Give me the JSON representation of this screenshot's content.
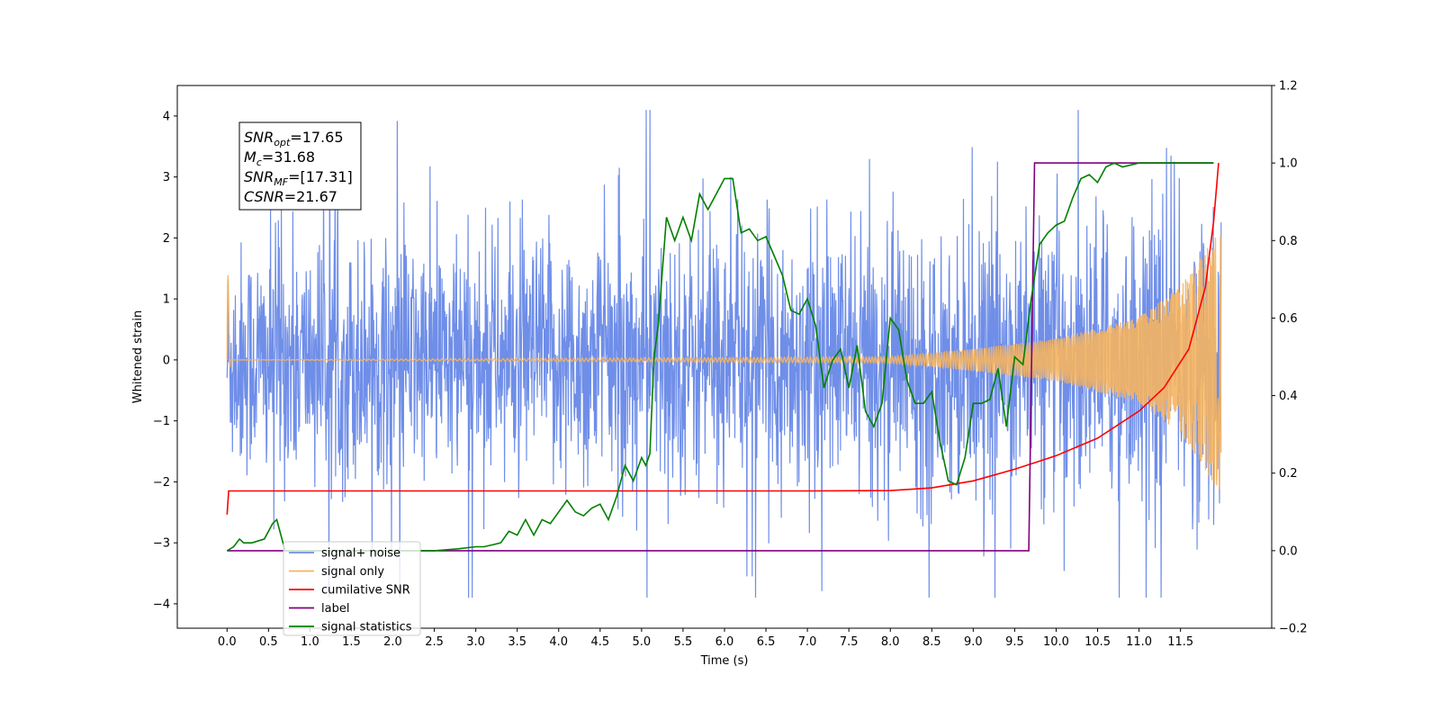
{
  "chart_data": {
    "type": "line",
    "xlabel": "Time (s)",
    "ylabel": "Whitened strain",
    "xlim": [
      -0.6,
      12.6
    ],
    "ylim": [
      -4.4,
      4.5
    ],
    "y2lim": [
      -0.2,
      1.2
    ],
    "xticks": [
      0.0,
      0.5,
      1.0,
      1.5,
      2.0,
      2.5,
      3.0,
      3.5,
      4.0,
      4.5,
      5.0,
      5.5,
      6.0,
      6.5,
      7.0,
      7.5,
      8.0,
      8.5,
      9.0,
      9.5,
      10.0,
      10.5,
      11.0,
      11.5
    ],
    "xtick_labels": [
      "0.0",
      "0.5",
      "1.0",
      "1.5",
      "2.0",
      "2.5",
      "3.0",
      "3.5",
      "4.0",
      "4.5",
      "5.0",
      "5.5",
      "6.0",
      "6.5",
      "7.0",
      "7.5",
      "8.0",
      "8.5",
      "9.0",
      "9.5",
      "10.0",
      "10.5",
      "11.0",
      "11.5"
    ],
    "yticks": [
      -4,
      -3,
      -2,
      -1,
      0,
      1,
      2,
      3,
      4
    ],
    "ytick_labels": [
      "−4",
      "−3",
      "−2",
      "−1",
      "0",
      "1",
      "2",
      "3",
      "4"
    ],
    "y2ticks": [
      -0.2,
      0.0,
      0.2,
      0.4,
      0.6,
      0.8,
      1.0,
      1.2
    ],
    "y2tick_labels": [
      "−0.2",
      "0.0",
      "0.2",
      "0.4",
      "0.6",
      "0.8",
      "1.0",
      "1.2"
    ],
    "legend_position": "lower-left",
    "grid": false,
    "annotation": {
      "lines": [
        {
          "base": "SNR",
          "sub": "opt",
          "value": "=17.65"
        },
        {
          "base": "M",
          "sub": "c",
          "value": "=31.68"
        },
        {
          "base": "SNR",
          "sub": "MF",
          "value": "=[17.31]"
        },
        {
          "base": "CSNR",
          "sub": "",
          "value": "=21.67"
        }
      ]
    },
    "series": [
      {
        "name": "signal+ noise",
        "color": "#6f8ee8",
        "axis": "left",
        "kind": "noise",
        "x_range": [
          0.0,
          11.99
        ],
        "amplitude_envelope": [
          [
            0.0,
            2.4
          ],
          [
            5.0,
            2.5
          ],
          [
            9.5,
            2.6
          ],
          [
            11.5,
            3.0
          ],
          [
            11.99,
            3.2
          ]
        ],
        "peak_range": [
          -3.9,
          4.1
        ]
      },
      {
        "name": "signal only",
        "color": "#f5b460",
        "axis": "left",
        "kind": "chirp",
        "x_range": [
          0.0,
          11.99
        ],
        "amplitude_envelope": [
          [
            0.0,
            0.0
          ],
          [
            8.0,
            0.05
          ],
          [
            9.0,
            0.18
          ],
          [
            10.0,
            0.35
          ],
          [
            11.0,
            0.7
          ],
          [
            11.5,
            1.2
          ],
          [
            11.99,
            2.2
          ]
        ]
      },
      {
        "name": "cumilative SNR",
        "color": "#ff0000",
        "axis": "right",
        "x": [
          0.0,
          0.02,
          1.0,
          2.0,
          3.0,
          4.0,
          5.0,
          6.0,
          7.0,
          8.0,
          8.5,
          9.0,
          9.5,
          10.0,
          10.5,
          11.0,
          11.3,
          11.6,
          11.8,
          11.9,
          11.96
        ],
        "y": [
          0.093,
          0.154,
          0.154,
          0.154,
          0.154,
          0.154,
          0.154,
          0.154,
          0.154,
          0.155,
          0.162,
          0.18,
          0.21,
          0.245,
          0.29,
          0.36,
          0.42,
          0.52,
          0.68,
          0.85,
          1.0
        ]
      },
      {
        "name": "label",
        "color": "#800080",
        "axis": "right",
        "x": [
          0.0,
          9.67,
          9.74,
          11.9
        ],
        "y": [
          0.0,
          0.0,
          1.0,
          1.0
        ]
      },
      {
        "name": "signal statistics",
        "color": "#008000",
        "axis": "right",
        "x": [
          0.0,
          0.08,
          0.15,
          0.2,
          0.3,
          0.45,
          0.55,
          0.6,
          0.7,
          0.8,
          1.0,
          1.5,
          2.0,
          2.5,
          2.8,
          3.0,
          3.1,
          3.2,
          3.3,
          3.4,
          3.5,
          3.6,
          3.7,
          3.8,
          3.9,
          4.0,
          4.1,
          4.2,
          4.3,
          4.4,
          4.5,
          4.6,
          4.7,
          4.8,
          4.9,
          5.0,
          5.05,
          5.1,
          5.15,
          5.2,
          5.3,
          5.4,
          5.5,
          5.6,
          5.7,
          5.8,
          5.9,
          6.0,
          6.1,
          6.2,
          6.3,
          6.4,
          6.5,
          6.6,
          6.7,
          6.8,
          6.9,
          7.0,
          7.1,
          7.2,
          7.3,
          7.4,
          7.5,
          7.6,
          7.7,
          7.8,
          7.9,
          8.0,
          8.1,
          8.2,
          8.3,
          8.4,
          8.5,
          8.6,
          8.7,
          8.8,
          8.9,
          9.0,
          9.1,
          9.2,
          9.3,
          9.4,
          9.5,
          9.6,
          9.7,
          9.8,
          9.9,
          10.0,
          10.1,
          10.2,
          10.3,
          10.4,
          10.5,
          10.6,
          10.7,
          10.8,
          11.0,
          11.2,
          11.5,
          11.9
        ],
        "y": [
          0.0,
          0.01,
          0.03,
          0.02,
          0.02,
          0.03,
          0.07,
          0.08,
          0.0,
          0.0,
          0.0,
          0.0,
          0.0,
          0.0,
          0.005,
          0.01,
          0.01,
          0.015,
          0.02,
          0.05,
          0.04,
          0.08,
          0.04,
          0.08,
          0.07,
          0.1,
          0.13,
          0.1,
          0.09,
          0.11,
          0.12,
          0.08,
          0.14,
          0.22,
          0.18,
          0.24,
          0.22,
          0.25,
          0.5,
          0.58,
          0.86,
          0.8,
          0.86,
          0.8,
          0.92,
          0.88,
          0.92,
          0.96,
          0.96,
          0.82,
          0.83,
          0.8,
          0.81,
          0.76,
          0.71,
          0.62,
          0.61,
          0.65,
          0.58,
          0.42,
          0.49,
          0.52,
          0.42,
          0.53,
          0.36,
          0.32,
          0.38,
          0.6,
          0.57,
          0.44,
          0.38,
          0.38,
          0.41,
          0.28,
          0.18,
          0.17,
          0.24,
          0.38,
          0.38,
          0.39,
          0.47,
          0.32,
          0.5,
          0.48,
          0.65,
          0.79,
          0.82,
          0.84,
          0.85,
          0.91,
          0.96,
          0.97,
          0.95,
          0.99,
          1.0,
          0.99,
          1.0,
          1.0,
          1.0,
          1.0
        ]
      }
    ]
  }
}
